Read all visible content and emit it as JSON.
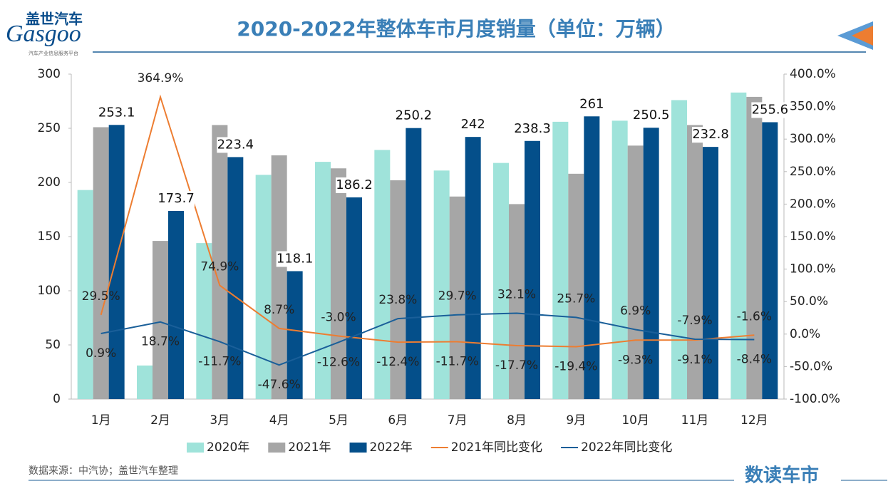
{
  "header": {
    "logo_cn": "盖世汽车",
    "logo_en": "Gasgoo",
    "logo_sub": "汽车产业信息服务平台"
  },
  "chart_data": {
    "type": "bar-line",
    "title": "2020-2022年整体车市月度销量（单位：万辆）",
    "categories": [
      "1月",
      "2月",
      "3月",
      "4月",
      "5月",
      "6月",
      "7月",
      "8月",
      "9月",
      "10月",
      "11月",
      "12月"
    ],
    "ylim": [
      0,
      300
    ],
    "yticks": [
      0,
      50,
      100,
      150,
      200,
      250,
      300
    ],
    "y2lim": [
      -100,
      400
    ],
    "y2ticks": [
      {
        "value": -100,
        "label": "-100.0%"
      },
      {
        "value": -50,
        "label": "-50.0%"
      },
      {
        "value": 0,
        "label": "0.0%"
      },
      {
        "value": 50,
        "label": "50.0%"
      },
      {
        "value": 100,
        "label": "100.0%"
      },
      {
        "value": 150,
        "label": "150.0%"
      },
      {
        "value": 200,
        "label": "200.0%"
      },
      {
        "value": 250,
        "label": "250.0%"
      },
      {
        "value": 300,
        "label": "300.0%"
      },
      {
        "value": 350,
        "label": "350.0%"
      },
      {
        "value": 400,
        "label": "400.0%"
      }
    ],
    "series": [
      {
        "name": "2020年",
        "type": "bar",
        "color": "#9fe3da",
        "values": [
          193,
          31,
          144,
          207,
          219,
          230,
          211,
          218,
          256,
          257,
          276,
          283
        ]
      },
      {
        "name": "2021年",
        "type": "bar",
        "color": "#a6a6a6",
        "values": [
          251,
          146,
          253,
          225,
          213,
          202,
          187,
          180,
          208,
          234,
          253,
          279
        ]
      },
      {
        "name": "2022年",
        "type": "bar",
        "color": "#044f8a",
        "values": [
          253.1,
          173.7,
          223.4,
          118.1,
          186.2,
          250.2,
          242,
          238.3,
          261,
          250.5,
          232.8,
          255.6
        ],
        "labels": true
      },
      {
        "name": "2021年同比变化",
        "type": "line",
        "axis": "y2",
        "color": "#ed7d31",
        "values": [
          29.5,
          364.9,
          74.9,
          8.7,
          -3.0,
          -12.4,
          -11.7,
          -17.7,
          -19.4,
          -9.3,
          -9.1,
          -1.6
        ],
        "value_labels": [
          "29.5%",
          "364.9%",
          "74.9%",
          "8.7%",
          "-3.0%",
          "-12.4%",
          "-11.7%",
          "-17.7%",
          "-19.4%",
          "-9.3%",
          "-9.1%",
          "-1.6%"
        ]
      },
      {
        "name": "2022年同比变化",
        "type": "line",
        "axis": "y2",
        "color": "#1a5f99",
        "values": [
          0.9,
          18.7,
          -11.7,
          -47.6,
          -12.6,
          23.8,
          29.7,
          32.1,
          25.7,
          6.9,
          -7.9,
          -8.4
        ],
        "value_labels": [
          "0.9%",
          "18.7%",
          "-11.7%",
          "-47.6%",
          "-12.6%",
          "23.8%",
          "29.7%",
          "32.1%",
          "25.7%",
          "6.9%",
          "-7.9%",
          "-8.4%"
        ]
      }
    ]
  },
  "footer": {
    "source": "数据来源：中汽协；盖世汽车整理",
    "brand": "数读车市"
  }
}
